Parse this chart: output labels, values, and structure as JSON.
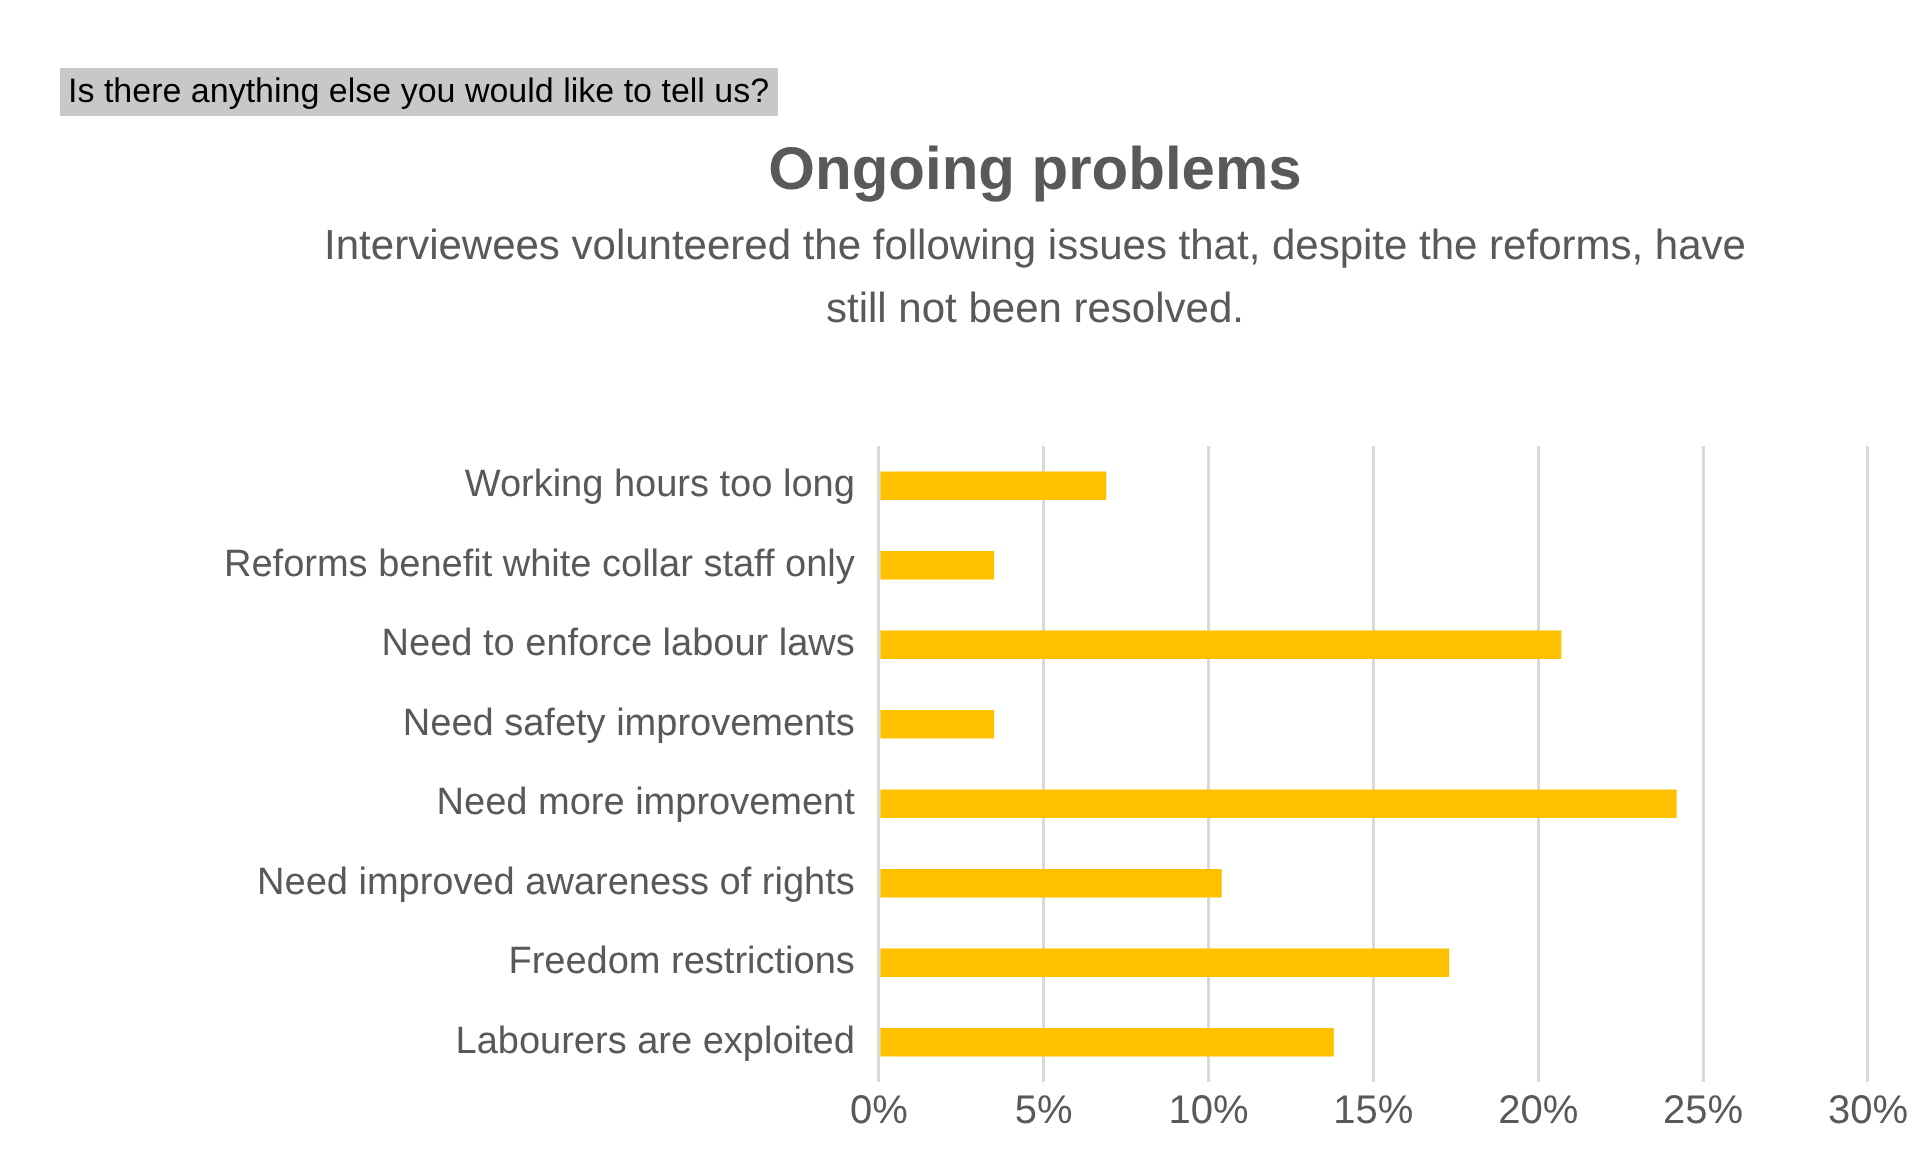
{
  "chart_data": {
    "type": "bar",
    "orientation": "horizontal",
    "title": "Ongoing problems",
    "subtitle": "Interviewees volunteered the following issues that, despite the reforms, have still not been resolved.",
    "annotations": [
      "Is there anything else you would like to tell us?"
    ],
    "categories": [
      "Working hours too long",
      "Reforms benefit white collar staff only",
      "Need to enforce labour laws",
      "Need safety improvements",
      "Need more improvement",
      "Need improved awareness of rights",
      "Freedom restrictions",
      "Labourers are exploited"
    ],
    "values": [
      6.9,
      3.5,
      20.7,
      3.5,
      24.2,
      10.4,
      17.3,
      13.8
    ],
    "color": "#ffc000",
    "xlim": [
      0,
      30
    ],
    "xticks": [
      {
        "value": 0,
        "label": "0%"
      },
      {
        "value": 5,
        "label": "5%"
      },
      {
        "value": 10,
        "label": "10%"
      },
      {
        "value": 15,
        "label": "15%"
      },
      {
        "value": 20,
        "label": "20%"
      },
      {
        "value": 25,
        "label": "25%"
      },
      {
        "value": 30,
        "label": "30%"
      }
    ],
    "grid": "x",
    "legend": false
  }
}
